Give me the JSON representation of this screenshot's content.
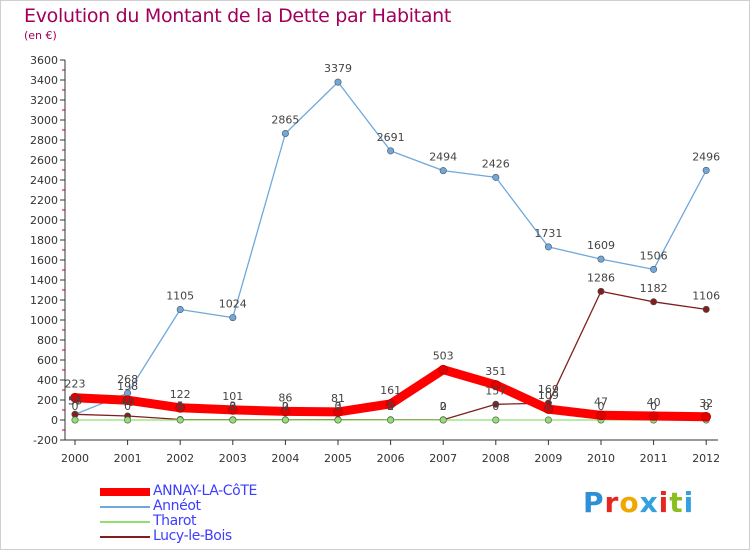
{
  "title": "Evolution du Montant de la Dette par Habitant",
  "subtitle": "(en €)",
  "logo": "Proxiti",
  "logo_colors": [
    "#2d8fd6",
    "#e6261f",
    "#f0a800",
    "#33a0e0",
    "#e6261f",
    "#8bbf1e",
    "#33a0e0"
  ],
  "chart_data": {
    "type": "line",
    "x": [
      "2000",
      "2001",
      "2002",
      "2003",
      "2004",
      "2005",
      "2006",
      "2007",
      "2008",
      "2009",
      "2010",
      "2011",
      "2012"
    ],
    "ylim": [
      -200,
      3600
    ],
    "yticks": [
      "-200",
      "0",
      "200",
      "400",
      "600",
      "800",
      "1000",
      "1200",
      "1400",
      "1600",
      "1800",
      "2000",
      "2200",
      "2400",
      "2600",
      "2800",
      "3000",
      "3200",
      "3400",
      "3600"
    ],
    "grid": false,
    "legend_position": "bottom-left",
    "series": [
      {
        "name": "ANNAY-LA-CôTE",
        "color": "#ff0000",
        "values": [
          223,
          198,
          122,
          101,
          86,
          81,
          161,
          503,
          351,
          109,
          47,
          40,
          32
        ],
        "labels": [
          "223",
          "198",
          "122",
          "101",
          "86",
          "81",
          "161",
          "503",
          "351",
          "109",
          "47",
          "40",
          "32"
        ]
      },
      {
        "name": "Annéot",
        "color": "#6fa8dc",
        "values": [
          56,
          268,
          1105,
          1024,
          2865,
          3379,
          2691,
          2494,
          2426,
          1731,
          1609,
          1506,
          2496
        ],
        "labels": [
          "56",
          "268",
          "1105",
          "1024",
          "2865",
          "3379",
          "2691",
          "2494",
          "2426",
          "1731",
          "1609",
          "1506",
          "2496"
        ]
      },
      {
        "name": "Tharot",
        "color": "#8fe070",
        "values": [
          0,
          0,
          0,
          0,
          0,
          0,
          0,
          0,
          0,
          0,
          0,
          0,
          0
        ],
        "labels": [
          "0",
          "0",
          "0",
          "0",
          "0",
          "0",
          "0",
          "0",
          "0",
          "0",
          "0",
          "0",
          "0"
        ]
      },
      {
        "name": "Lucy-le-Bois",
        "color": "#7f1f1f",
        "values": [
          57,
          40,
          5,
          3,
          2,
          3,
          2,
          2,
          157,
          169,
          1286,
          1182,
          1106
        ],
        "labels": [
          "57",
          "40",
          "5",
          "3",
          "2",
          "3",
          "2",
          "2",
          "157",
          "169",
          "1286",
          "1182",
          "1106"
        ]
      }
    ]
  }
}
